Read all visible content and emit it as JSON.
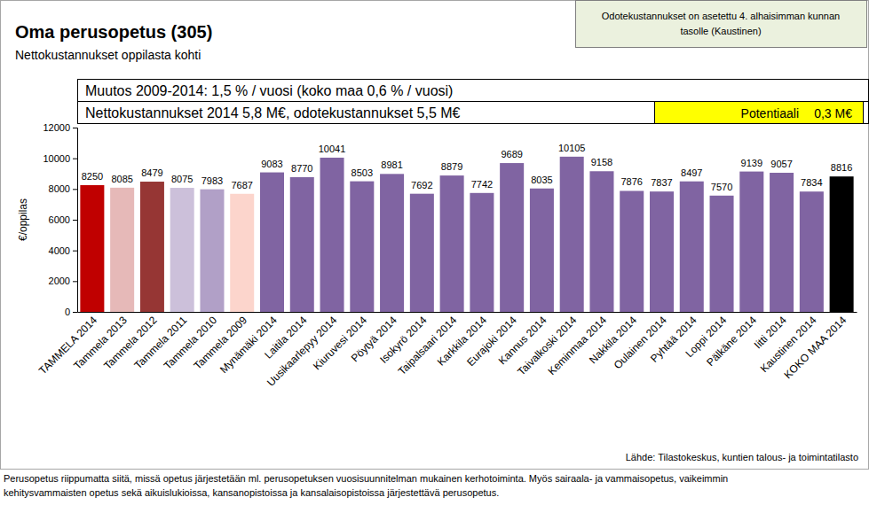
{
  "chart_data": {
    "type": "bar",
    "title": "Oma perusopetus (305)",
    "subtitle": "Nettokustannukset oppilasta kohti",
    "y_label": "€/oppilas",
    "annotations": [
      "Odotekustannukset on asetettu 4. alhaisimman kunnan",
      "tasolle (Kaustinen)",
      "Muutos 2009-2014: 1,5 % / vuosi (koko maa 0,6 % / vuosi)",
      "Nettokustannukset 2014 5,8 M€, odotekustannukset 5,5 M€",
      "Potentiaali",
      "0,3 M€",
      "Lähde: Tilastokeskus, kuntien talous- ja toimintatilasto",
      "Perusopetus riippumatta siitä, missä opetus järjestetään ml. perusopetuksen vuosisuunnitelman mukainen kerhotoiminta. Myös sairaala- ja vammaisopetus, vaikeimmin",
      "kehitysvammaisten opetus sekä aikuislukioissa, kansanopistoissa ja kansalaisopistoissa järjestettävä perusopetus."
    ],
    "categories": [
      "TAMMELA 2014",
      "Tammela 2013",
      "Tammela 2012",
      "Tammela 2011",
      "Tammela 2010",
      "Tammela 2009",
      "Mynämäki 2014",
      "Laitila 2014",
      "Uusikaarlepyy 2014",
      "Kiuruvesi 2014",
      "Pöytyä 2014",
      "Isokyrö 2014",
      "Taipalsaari 2014",
      "Karkkila 2014",
      "Eurajoki 2014",
      "Kannus 2014",
      "Taivalkoski 2014",
      "Keminmaa 2014",
      "Nakkila 2014",
      "Oulainen 2014",
      "Pyhtää 2014",
      "Loppi 2014",
      "Pälkäne 2014",
      "Iitti 2014",
      "Kaustinen 2014",
      "KOKO MAA 2014"
    ],
    "values": [
      8250,
      8085,
      8479,
      8075,
      7983,
      7687,
      9083,
      8770,
      10041,
      8503,
      8981,
      7692,
      8879,
      7742,
      9689,
      8035,
      10105,
      9158,
      7876,
      7837,
      8497,
      7570,
      9139,
      9057,
      7834,
      8816
    ],
    "colors": [
      "#c00000",
      "#e6b9b8",
      "#963634",
      "#ccc0da",
      "#b1a0c7",
      "#fcd5cc",
      "#8064a2",
      "#8064a2",
      "#8064a2",
      "#8064a2",
      "#8064a2",
      "#8064a2",
      "#8064a2",
      "#8064a2",
      "#8064a2",
      "#8064a2",
      "#8064a2",
      "#8064a2",
      "#8064a2",
      "#8064a2",
      "#8064a2",
      "#8064a2",
      "#8064a2",
      "#8064a2",
      "#8064a2",
      "#000000"
    ],
    "ylim": [
      0,
      12000
    ],
    "yticks": [
      0,
      2000,
      4000,
      6000,
      8000,
      10000,
      12000
    ],
    "grid": false,
    "data_labels": true
  }
}
